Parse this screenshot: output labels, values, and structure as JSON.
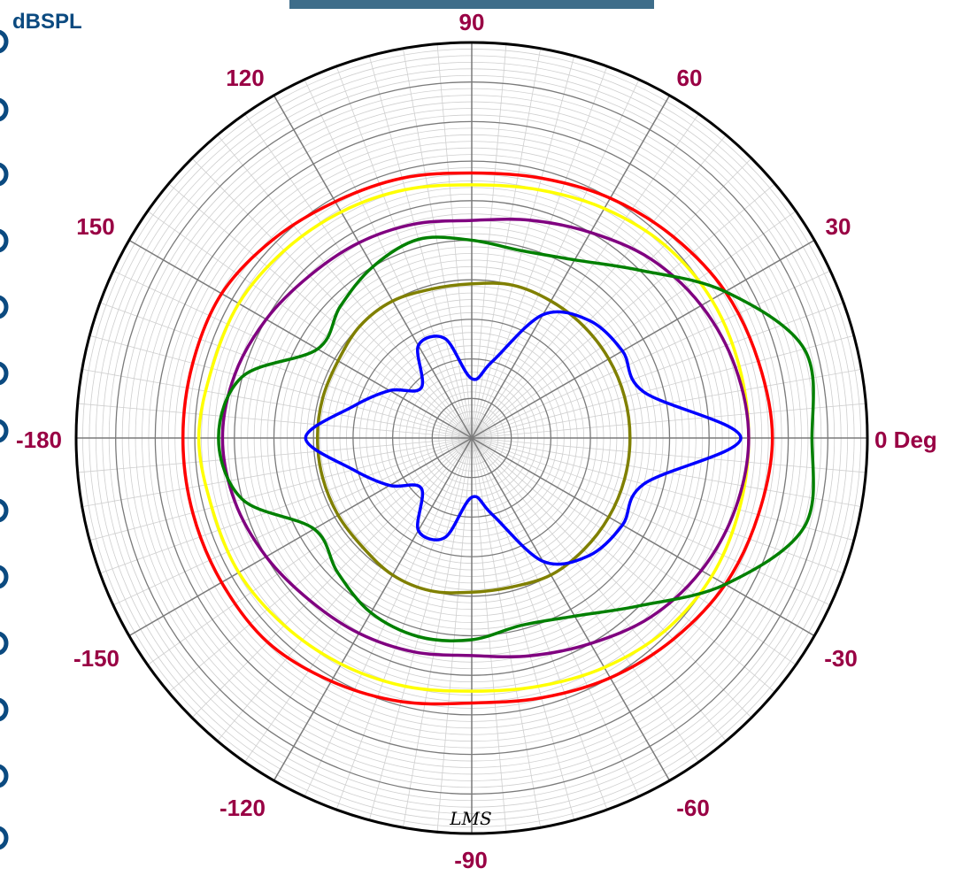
{
  "chart_data": {
    "type": "polar",
    "unit_label": "dBSPL",
    "angle_unit_label": "0 Deg",
    "angle_ticks": [
      90,
      60,
      30,
      0,
      -30,
      -60,
      -90,
      -120,
      -150,
      -180,
      150,
      120
    ],
    "logo": "LMS",
    "colors": {
      "frame": "#000000",
      "grid_major": "#7a7a7a",
      "grid_minor": "#cfcfcf",
      "axis_label": "#990044",
      "unit_label": "#0b4a80",
      "header_bar": "#3e6d8a"
    },
    "series_angles_deg": [
      0,
      15,
      30,
      45,
      60,
      75,
      90,
      105,
      120,
      135,
      150,
      165,
      180,
      195,
      210,
      225,
      240,
      255,
      270,
      285,
      300,
      315,
      330,
      345
    ],
    "series": [
      {
        "color": "#ff0000",
        "values": [
          0.76,
          0.75,
          0.74,
          0.72,
          0.7,
          0.68,
          0.67,
          0.68,
          0.69,
          0.71,
          0.73,
          0.73,
          0.73,
          0.73,
          0.73,
          0.73,
          0.71,
          0.69,
          0.67,
          0.68,
          0.7,
          0.72,
          0.74,
          0.75
        ]
      },
      {
        "color": "#ffff00",
        "values": [
          0.7,
          0.7,
          0.7,
          0.69,
          0.67,
          0.65,
          0.64,
          0.65,
          0.66,
          0.67,
          0.68,
          0.68,
          0.69,
          0.68,
          0.68,
          0.67,
          0.66,
          0.65,
          0.64,
          0.65,
          0.67,
          0.69,
          0.7,
          0.7
        ]
      },
      {
        "color": "#800080",
        "values": [
          0.7,
          0.69,
          0.67,
          0.64,
          0.6,
          0.57,
          0.55,
          0.56,
          0.57,
          0.58,
          0.6,
          0.62,
          0.63,
          0.62,
          0.6,
          0.58,
          0.57,
          0.56,
          0.55,
          0.57,
          0.6,
          0.64,
          0.67,
          0.69
        ]
      },
      {
        "color": "#008000",
        "values": [
          0.86,
          0.87,
          0.74,
          0.6,
          0.52,
          0.49,
          0.5,
          0.52,
          0.5,
          0.47,
          0.45,
          0.6,
          0.64,
          0.6,
          0.46,
          0.48,
          0.51,
          0.52,
          0.51,
          0.49,
          0.52,
          0.6,
          0.74,
          0.87
        ]
      },
      {
        "color": "#808000",
        "values": [
          0.4,
          0.4,
          0.4,
          0.4,
          0.4,
          0.4,
          0.39,
          0.39,
          0.4,
          0.4,
          0.39,
          0.39,
          0.39,
          0.39,
          0.39,
          0.39,
          0.4,
          0.4,
          0.39,
          0.39,
          0.4,
          0.4,
          0.4,
          0.4
        ]
      },
      {
        "color": "#0000ff",
        "values": [
          0.68,
          0.45,
          0.44,
          0.42,
          0.36,
          0.2,
          0.15,
          0.26,
          0.27,
          0.18,
          0.24,
          0.31,
          0.42,
          0.31,
          0.24,
          0.18,
          0.27,
          0.26,
          0.15,
          0.2,
          0.36,
          0.42,
          0.44,
          0.45
        ]
      }
    ]
  }
}
